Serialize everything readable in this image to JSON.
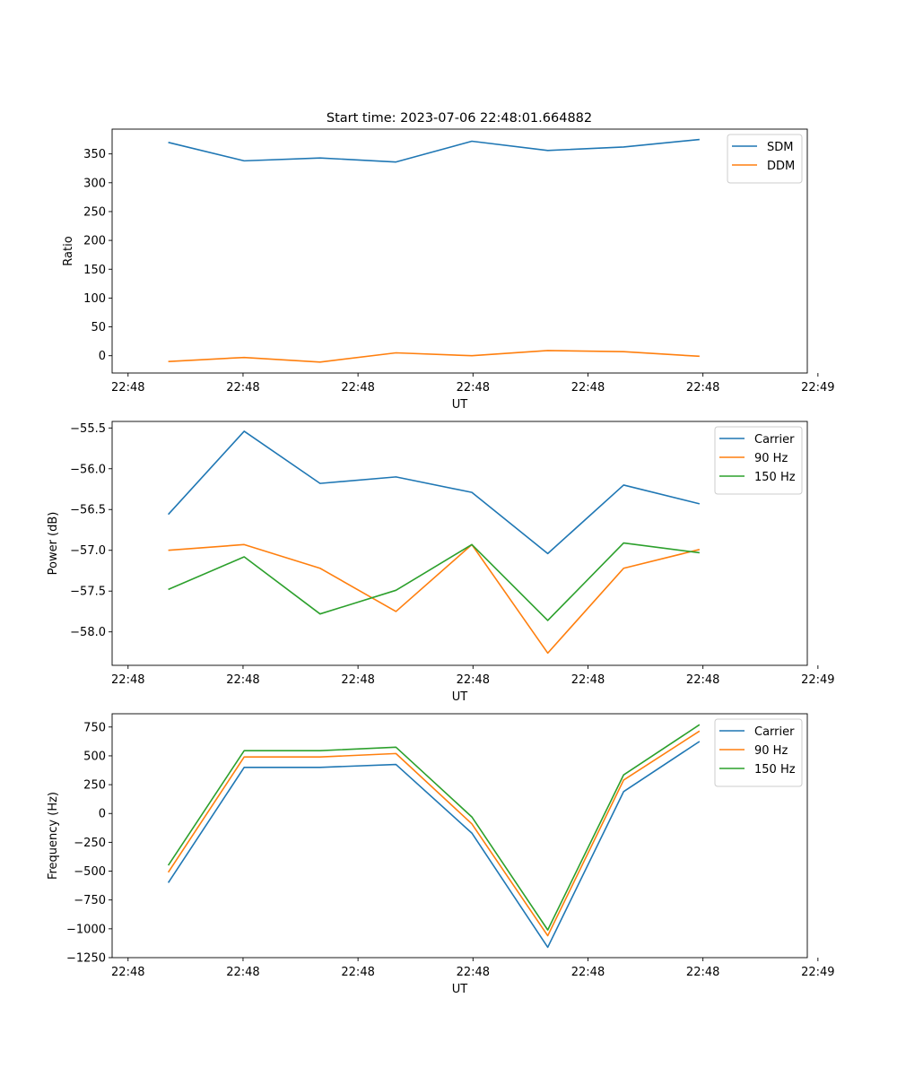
{
  "chart_data": [
    {
      "type": "line",
      "title": "Start time: 2023-07-06 22:48:01.664882",
      "xlabel": "UT",
      "ylabel": "Ratio",
      "x": [
        1,
        2,
        3,
        4,
        5,
        6,
        7,
        8
      ],
      "xlim": [
        0.26,
        9.42
      ],
      "xticks": [
        0.47,
        1.985,
        3.5,
        5.015,
        6.53,
        8.045,
        9.56
      ],
      "xtick_labels": [
        "22:48",
        "22:48",
        "22:48",
        "22:48",
        "22:48",
        "22:48",
        "22:49"
      ],
      "ylim": [
        -30,
        393
      ],
      "yticks": [
        0,
        50,
        100,
        150,
        200,
        250,
        300,
        350
      ],
      "ytick_labels": [
        "0",
        "50",
        "100",
        "150",
        "200",
        "250",
        "300",
        "350"
      ],
      "legend_position": "top-right",
      "series": [
        {
          "name": "SDM",
          "color": "#1f77b4",
          "values": [
            370,
            338,
            343,
            336,
            372,
            356,
            362,
            375
          ]
        },
        {
          "name": "DDM",
          "color": "#ff7f0e",
          "values": [
            -10,
            -3,
            -11,
            5,
            0,
            9,
            7,
            -1
          ]
        }
      ]
    },
    {
      "type": "line",
      "title": "",
      "xlabel": "UT",
      "ylabel": "Power (dB)",
      "x": [
        1,
        2,
        3,
        4,
        5,
        6,
        7,
        8
      ],
      "xlim": [
        0.26,
        9.42
      ],
      "xticks": [
        0.47,
        1.985,
        3.5,
        5.015,
        6.53,
        8.045,
        9.56
      ],
      "xtick_labels": [
        "22:48",
        "22:48",
        "22:48",
        "22:48",
        "22:48",
        "22:48",
        "22:49"
      ],
      "ylim": [
        -58.41,
        -55.42
      ],
      "yticks": [
        -58.0,
        -57.5,
        -57.0,
        -56.5,
        -56.0,
        -55.5
      ],
      "ytick_labels": [
        "−58.0",
        "−57.5",
        "−57.0",
        "−56.5",
        "−56.0",
        "−55.5"
      ],
      "legend_position": "top-right",
      "series": [
        {
          "name": "Carrier",
          "color": "#1f77b4",
          "values": [
            -56.56,
            -55.54,
            -56.18,
            -56.1,
            -56.29,
            -57.04,
            -56.2,
            -56.43
          ]
        },
        {
          "name": "90 Hz",
          "color": "#ff7f0e",
          "values": [
            -57.0,
            -56.93,
            -57.22,
            -57.75,
            -56.93,
            -58.26,
            -57.22,
            -56.99
          ]
        },
        {
          "name": "150 Hz",
          "color": "#2ca02c",
          "values": [
            -57.48,
            -57.08,
            -57.78,
            -57.49,
            -56.93,
            -57.86,
            -56.91,
            -57.03
          ]
        }
      ]
    },
    {
      "type": "line",
      "title": "",
      "xlabel": "UT",
      "ylabel": "Frequency (Hz)",
      "x": [
        1,
        2,
        3,
        4,
        5,
        6,
        7,
        8
      ],
      "xlim": [
        0.26,
        9.42
      ],
      "xticks": [
        0.47,
        1.985,
        3.5,
        5.015,
        6.53,
        8.045,
        9.56
      ],
      "xtick_labels": [
        "22:48",
        "22:48",
        "22:48",
        "22:48",
        "22:48",
        "22:48",
        "22:49"
      ],
      "ylim": [
        -1250,
        865
      ],
      "yticks": [
        -1250,
        -1000,
        -750,
        -500,
        -250,
        0,
        250,
        500,
        750
      ],
      "ytick_labels": [
        "−1250",
        "−1000",
        "−750",
        "−500",
        "−250",
        "0",
        "250",
        "500",
        "750"
      ],
      "legend_position": "top-right",
      "series": [
        {
          "name": "Carrier",
          "color": "#1f77b4",
          "values": [
            -600,
            400,
            400,
            425,
            -170,
            -1160,
            190,
            625
          ]
        },
        {
          "name": "90 Hz",
          "color": "#ff7f0e",
          "values": [
            -510,
            490,
            490,
            520,
            -90,
            -1060,
            290,
            715
          ]
        },
        {
          "name": "150 Hz",
          "color": "#2ca02c",
          "values": [
            -450,
            545,
            545,
            575,
            -30,
            -1010,
            335,
            770
          ]
        }
      ]
    }
  ]
}
